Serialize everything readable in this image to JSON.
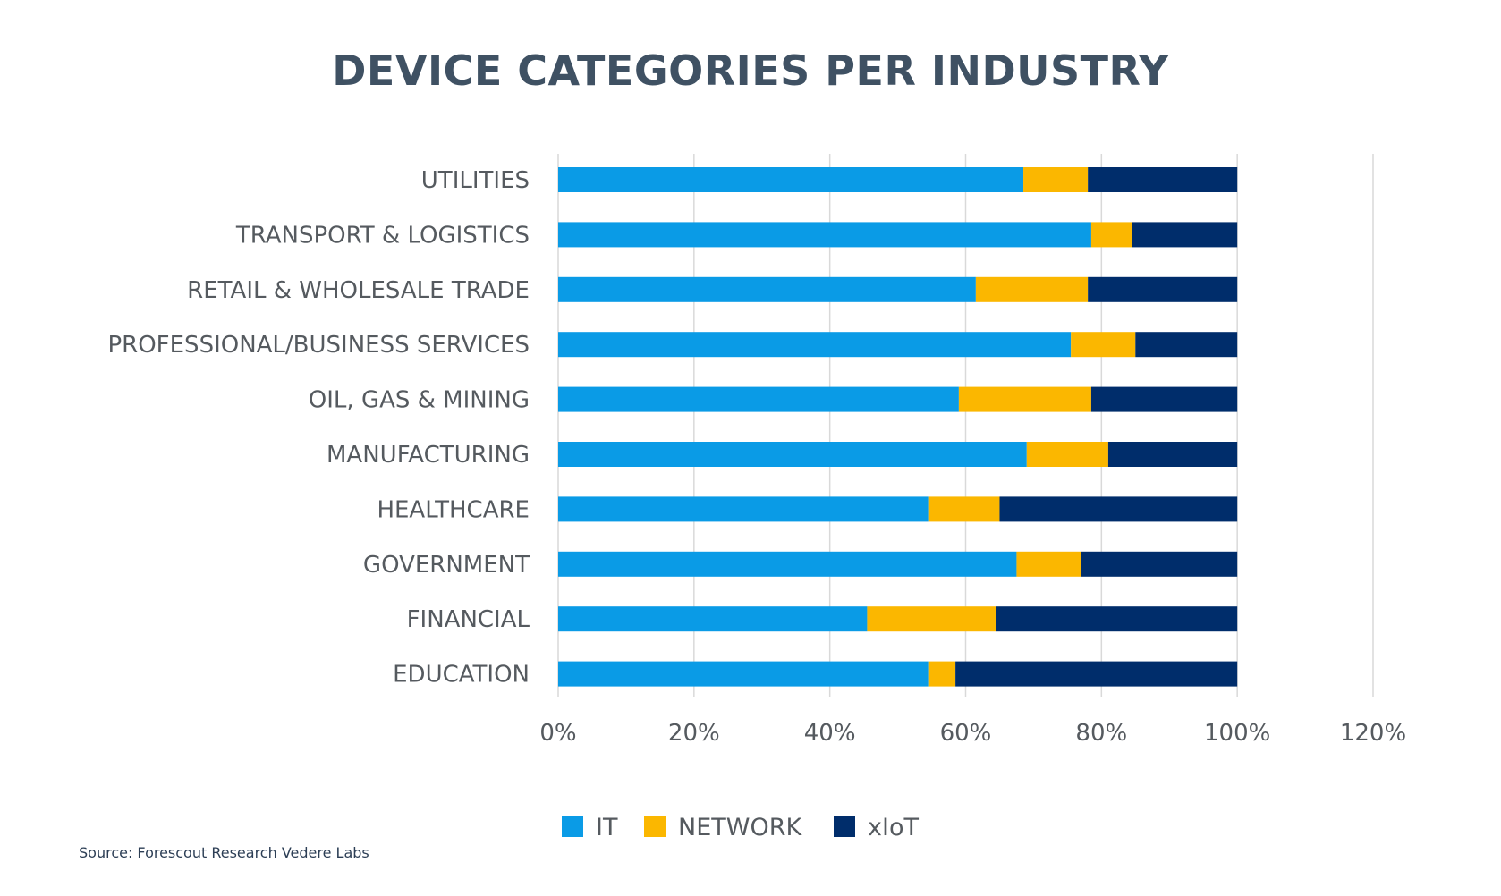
{
  "chart_data": {
    "type": "bar",
    "orientation": "horizontal",
    "stacked": true,
    "title": "DEVICE CATEGORIES PER INDUSTRY",
    "categories": [
      "UTILITIES",
      "TRANSPORT & LOGISTICS",
      "RETAIL & WHOLESALE TRADE",
      "PROFESSIONAL/BUSINESS SERVICES",
      "OIL, GAS & MINING",
      "MANUFACTURING",
      "HEALTHCARE",
      "GOVERNMENT",
      "FINANCIAL",
      "EDUCATION"
    ],
    "series": [
      {
        "name": "IT",
        "color": "#0a9be6",
        "values": [
          68.5,
          78.5,
          61.5,
          75.5,
          59,
          69,
          54.5,
          67.5,
          45.5,
          54.5
        ]
      },
      {
        "name": "NETWORK",
        "color": "#fbb700",
        "values": [
          9.5,
          6,
          16.5,
          9.5,
          19.5,
          12,
          10.5,
          9.5,
          19,
          4
        ]
      },
      {
        "name": "xIoT",
        "color": "#002d6b",
        "values": [
          22,
          15.5,
          22,
          15,
          21.5,
          19,
          35,
          23,
          35.5,
          41.5
        ]
      }
    ],
    "xlim": [
      0,
      120
    ],
    "xticks": [
      "0%",
      "20%",
      "40%",
      "60%",
      "80%",
      "100%",
      "120%"
    ],
    "grid": "vertical",
    "legend_position": "bottom"
  },
  "source_note": "Source: Forescout Research Vedere Labs"
}
